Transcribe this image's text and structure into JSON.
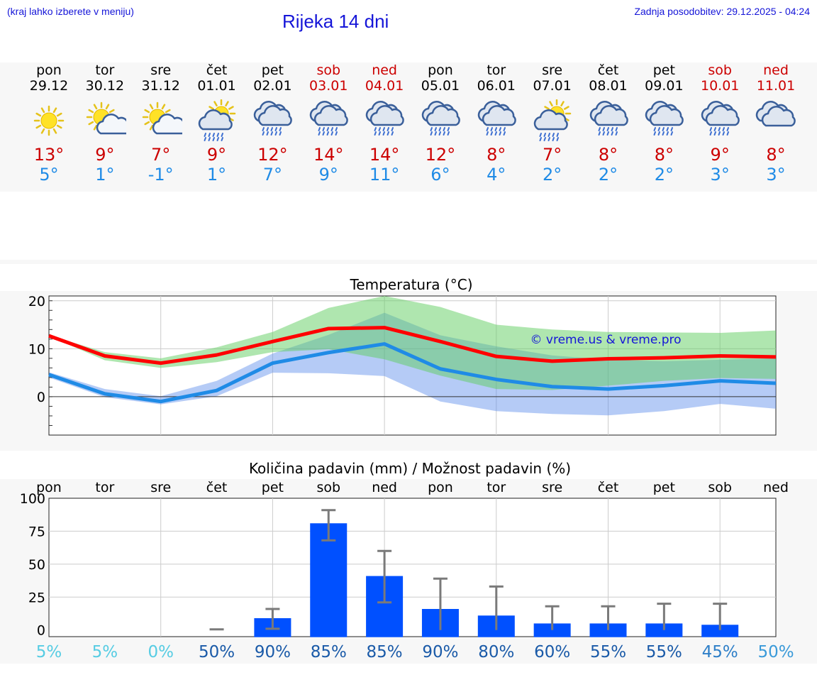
{
  "header": {
    "left_note": "(kraj lahko izberete v meniju)",
    "title": "Rijeka 14 dni",
    "last_update": "Zadnja posodobitev: 29.12.2025 - 04:24"
  },
  "days": [
    {
      "name": "pon",
      "date": "29.12",
      "icon": "sun-icon",
      "tmax": "13°",
      "tmin": "5°",
      "weekend": false
    },
    {
      "name": "tor",
      "date": "30.12",
      "icon": "sun-cloud-icon",
      "tmax": "9°",
      "tmin": "1°",
      "weekend": false
    },
    {
      "name": "sre",
      "date": "31.12",
      "icon": "sun-cloud-icon",
      "tmax": "7°",
      "tmin": "-1°",
      "weekend": false
    },
    {
      "name": "čet",
      "date": "01.01",
      "icon": "sun-rain-cloud-icon",
      "tmax": "9°",
      "tmin": "1°",
      "weekend": false
    },
    {
      "name": "pet",
      "date": "02.01",
      "icon": "rain-cloud-icon",
      "tmax": "12°",
      "tmin": "7°",
      "weekend": false
    },
    {
      "name": "sob",
      "date": "03.01",
      "icon": "rain-cloud-icon",
      "tmax": "14°",
      "tmin": "9°",
      "weekend": true
    },
    {
      "name": "ned",
      "date": "04.01",
      "icon": "rain-cloud-icon",
      "tmax": "14°",
      "tmin": "11°",
      "weekend": true
    },
    {
      "name": "pon",
      "date": "05.01",
      "icon": "rain-cloud-icon",
      "tmax": "12°",
      "tmin": "6°",
      "weekend": false
    },
    {
      "name": "tor",
      "date": "06.01",
      "icon": "rain-cloud-icon",
      "tmax": "8°",
      "tmin": "4°",
      "weekend": false
    },
    {
      "name": "sre",
      "date": "07.01",
      "icon": "sun-rain-cloud-icon",
      "tmax": "7°",
      "tmin": "2°",
      "weekend": false
    },
    {
      "name": "čet",
      "date": "08.01",
      "icon": "rain-cloud-icon",
      "tmax": "8°",
      "tmin": "2°",
      "weekend": false
    },
    {
      "name": "pet",
      "date": "09.01",
      "icon": "rain-cloud-icon",
      "tmax": "8°",
      "tmin": "2°",
      "weekend": false
    },
    {
      "name": "sob",
      "date": "10.01",
      "icon": "rain-cloud-icon",
      "tmax": "9°",
      "tmin": "3°",
      "weekend": true
    },
    {
      "name": "ned",
      "date": "11.01",
      "icon": "cloud-icon",
      "tmax": "8°",
      "tmin": "3°",
      "weekend": true
    }
  ],
  "chart_data": [
    {
      "type": "line",
      "title": "Temperatura (°C)",
      "ylim": [
        -8,
        21
      ],
      "yticks": [
        "20",
        "10",
        "0"
      ],
      "watermark": "© vreme.us & vreme.pro",
      "x": [
        0,
        1,
        2,
        3,
        4,
        5,
        6,
        7,
        8,
        9,
        10,
        11,
        12,
        13
      ],
      "series": [
        {
          "name": "max",
          "color": "#ff0000",
          "values": [
            12.7,
            8.5,
            7.0,
            8.7,
            11.5,
            14.2,
            14.4,
            11.5,
            8.4,
            7.4,
            7.9,
            8.1,
            8.5,
            8.3
          ]
        },
        {
          "name": "min",
          "color": "#1f8be6",
          "values": [
            4.6,
            0.6,
            -1.0,
            1.3,
            7.0,
            9.2,
            11.0,
            5.8,
            3.6,
            2.1,
            1.6,
            2.3,
            3.3,
            2.8
          ]
        }
      ],
      "max_band": {
        "upper": [
          12.8,
          9.3,
          8.0,
          10.3,
          13.5,
          18.5,
          21.0,
          18.7,
          15.0,
          14.0,
          13.5,
          13.4,
          13.3,
          13.8
        ],
        "lower": [
          12.6,
          7.6,
          6.0,
          7.2,
          9.3,
          9.9,
          7.8,
          4.4,
          1.6,
          1.4,
          2.3,
          3.3,
          3.9,
          3.7
        ]
      },
      "min_band": {
        "upper": [
          5.1,
          1.6,
          0.1,
          3.3,
          9.0,
          12.9,
          17.5,
          12.8,
          10.5,
          8.6,
          7.7,
          7.4,
          7.7,
          8.0
        ],
        "lower": [
          4.0,
          -0.1,
          -1.6,
          0.1,
          5.0,
          4.9,
          4.3,
          -1.0,
          -3.0,
          -3.6,
          -3.9,
          -3.0,
          -1.5,
          -2.5
        ]
      }
    },
    {
      "type": "bar",
      "title": "Količina padavin (mm) / Možnost padavin (%)",
      "ylim": [
        -5,
        100
      ],
      "yticks": [
        "100",
        "75",
        "50",
        "25",
        "0"
      ],
      "categories": [
        "pon",
        "tor",
        "sre",
        "čet",
        "pet",
        "sob",
        "ned",
        "pon",
        "tor",
        "sre",
        "čet",
        "pet",
        "sob",
        "ned"
      ],
      "bar_color": "#0050ff",
      "values": [
        0,
        0,
        0,
        0,
        9,
        81,
        41,
        16,
        11,
        5,
        5,
        5,
        4,
        0
      ],
      "error_low": [
        0,
        0,
        0,
        0,
        1,
        68,
        21,
        0,
        0,
        0,
        0,
        0,
        0,
        0
      ],
      "error_high": [
        0,
        0,
        0,
        0.5,
        16,
        91,
        60,
        39,
        33,
        18,
        18,
        20,
        20,
        0
      ],
      "probabilities": [
        {
          "label": "5%",
          "color": "#56cce3"
        },
        {
          "label": "5%",
          "color": "#56cce3"
        },
        {
          "label": "0%",
          "color": "#56cce3"
        },
        {
          "label": "50%",
          "color": "#1a5aa8"
        },
        {
          "label": "90%",
          "color": "#1a5aa8"
        },
        {
          "label": "85%",
          "color": "#1a5aa8"
        },
        {
          "label": "85%",
          "color": "#1a5aa8"
        },
        {
          "label": "90%",
          "color": "#1a5aa8"
        },
        {
          "label": "80%",
          "color": "#1a5aa8"
        },
        {
          "label": "60%",
          "color": "#1a5aa8"
        },
        {
          "label": "55%",
          "color": "#1a5aa8"
        },
        {
          "label": "55%",
          "color": "#1a5aa8"
        },
        {
          "label": "45%",
          "color": "#2e7fc8"
        },
        {
          "label": "50%",
          "color": "#3a9ad9"
        }
      ]
    }
  ]
}
